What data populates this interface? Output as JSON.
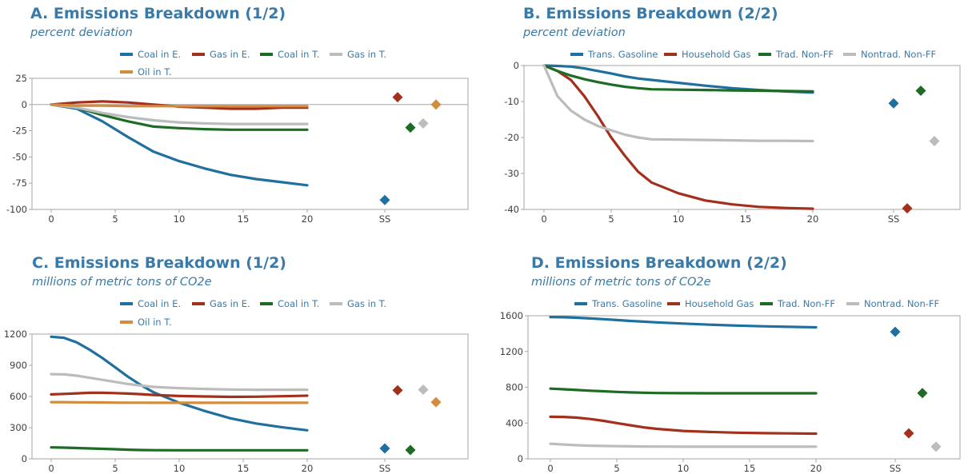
{
  "colors": {
    "blue": "#1f6f9f",
    "red": "#a3301c",
    "green": "#1e6b24",
    "gray": "#bcbcbc",
    "orange": "#d38b3e",
    "text": "#3a7aa8",
    "axis": "#a6a6a6"
  },
  "chart_data": [
    {
      "type": "line",
      "title": "A. Emissions Breakdown (1/2)",
      "subtitle": "percent deviation",
      "xlabel": "",
      "ylabel": "",
      "xlim": [
        0,
        20
      ],
      "ylim": [
        -100,
        25
      ],
      "xticks": [
        "0",
        "5",
        "10",
        "15",
        "20"
      ],
      "yticks": [
        "25",
        "0",
        "-25",
        "-50",
        "-75",
        "-100"
      ],
      "ss_label": "SS",
      "grid": false,
      "legend": "top",
      "x": [
        0,
        2,
        4,
        6,
        8,
        10,
        12,
        14,
        16,
        18,
        20
      ],
      "series": [
        {
          "name": "Coal in E.",
          "color": "blue",
          "values": [
            0,
            -4,
            -16,
            -31,
            -45,
            -54,
            -61,
            -67,
            -71,
            -74,
            -77
          ],
          "ss": -91
        },
        {
          "name": "Gas in E.",
          "color": "red",
          "values": [
            0,
            2,
            3,
            2,
            0,
            -2,
            -3,
            -4,
            -4,
            -3,
            -3
          ],
          "ss": 7
        },
        {
          "name": "Coal in T.",
          "color": "green",
          "values": [
            0,
            -3,
            -10,
            -16,
            -21,
            -22.5,
            -23.5,
            -24,
            -24,
            -24,
            -24
          ],
          "ss": -22
        },
        {
          "name": "Gas in T.",
          "color": "gray",
          "values": [
            0,
            -3,
            -8,
            -12,
            -15,
            -17,
            -18,
            -18.5,
            -18.5,
            -18.5,
            -18.5
          ],
          "ss": -18
        },
        {
          "name": "Oil in T.",
          "color": "orange",
          "values": [
            0,
            -1,
            -1,
            -1.5,
            -1.5,
            -1.5,
            -1.5,
            -1.5,
            -1.5,
            -1.5,
            -1.5
          ],
          "ss": 0
        }
      ]
    },
    {
      "type": "line",
      "title": "B. Emissions Breakdown (2/2)",
      "subtitle": "percent deviation",
      "xlabel": "",
      "ylabel": "",
      "xlim": [
        0,
        20
      ],
      "ylim": [
        -40,
        0
      ],
      "xticks": [
        "0",
        "5",
        "10",
        "15",
        "20"
      ],
      "yticks": [
        "0",
        "-10",
        "-20",
        "-30",
        "-40"
      ],
      "ss_label": "SS",
      "grid": false,
      "legend": "top",
      "x": [
        0,
        1,
        2,
        3,
        4,
        5,
        6,
        7,
        8,
        10,
        12,
        14,
        16,
        18,
        20
      ],
      "series": [
        {
          "name": "Trans. Gasoline",
          "color": "blue",
          "values": [
            0,
            -0.1,
            -0.3,
            -0.8,
            -1.5,
            -2.2,
            -3,
            -3.6,
            -4,
            -4.8,
            -5.6,
            -6.3,
            -6.8,
            -7.2,
            -7.5
          ],
          "ss": -10.5
        },
        {
          "name": "Household Gas",
          "color": "red",
          "values": [
            0,
            -1.5,
            -4,
            -8.5,
            -14,
            -20,
            -25,
            -29.5,
            -32.5,
            -35.5,
            -37.5,
            -38.6,
            -39.3,
            -39.6,
            -39.8
          ],
          "ss": -39.7
        },
        {
          "name": "Trad. Non-FF",
          "color": "green",
          "values": [
            0,
            -1.5,
            -2.8,
            -3.8,
            -4.6,
            -5.3,
            -5.9,
            -6.3,
            -6.6,
            -6.7,
            -6.8,
            -6.9,
            -7,
            -7.1,
            -7.2
          ],
          "ss": -7
        },
        {
          "name": "Nontrad. Non-FF",
          "color": "gray",
          "values": [
            0,
            -8.5,
            -12.5,
            -15,
            -16.8,
            -18,
            -19.2,
            -20,
            -20.5,
            -20.6,
            -20.7,
            -20.8,
            -20.9,
            -20.9,
            -21
          ],
          "ss": -21
        }
      ]
    },
    {
      "type": "line",
      "title": "C. Emissions Breakdown (1/2)",
      "subtitle": "millions of metric tons of CO2e",
      "xlabel": "",
      "ylabel": "",
      "xlim": [
        0,
        20
      ],
      "ylim": [
        0,
        1200
      ],
      "xticks": [
        "0",
        "5",
        "10",
        "15",
        "20"
      ],
      "yticks": [
        "1200",
        "900",
        "600",
        "300",
        "0"
      ],
      "ss_label": "SS",
      "grid": false,
      "legend": "top",
      "x": [
        0,
        1,
        2,
        3,
        4,
        5,
        6,
        7,
        8,
        10,
        12,
        14,
        16,
        18,
        20
      ],
      "series": [
        {
          "name": "Coal in E.",
          "color": "blue",
          "values": [
            1175,
            1165,
            1120,
            1050,
            970,
            880,
            790,
            710,
            640,
            540,
            460,
            390,
            340,
            305,
            275
          ],
          "ss": 100
        },
        {
          "name": "Gas in E.",
          "color": "red",
          "values": [
            620,
            625,
            630,
            635,
            635,
            632,
            628,
            622,
            615,
            605,
            600,
            596,
            598,
            602,
            608
          ],
          "ss": 660
        },
        {
          "name": "Coal in T.",
          "color": "green",
          "values": [
            110,
            108,
            104,
            100,
            96,
            92,
            88,
            85,
            83,
            82,
            82,
            82,
            82,
            82,
            82
          ],
          "ss": 85
        },
        {
          "name": "Gas in T.",
          "color": "gray",
          "values": [
            815,
            812,
            800,
            780,
            760,
            740,
            720,
            705,
            692,
            680,
            672,
            667,
            665,
            665,
            665
          ],
          "ss": 665
        },
        {
          "name": "Oil in T.",
          "color": "orange",
          "values": [
            545,
            545,
            544,
            543,
            542,
            541,
            540,
            540,
            539,
            539,
            539,
            539,
            539,
            539,
            539
          ],
          "ss": 545
        }
      ]
    },
    {
      "type": "line",
      "title": "D. Emissions Breakdown (2/2)",
      "subtitle": "millions of metric tons of CO2e",
      "xlabel": "",
      "ylabel": "",
      "xlim": [
        0,
        20
      ],
      "ylim": [
        0,
        1600
      ],
      "xticks": [
        "0",
        "5",
        "10",
        "15",
        "20"
      ],
      "yticks": [
        "1600",
        "1200",
        "800",
        "400",
        "0"
      ],
      "ss_label": "SS",
      "grid": false,
      "legend": "top",
      "x": [
        0,
        1,
        2,
        3,
        4,
        5,
        6,
        7,
        8,
        10,
        12,
        14,
        16,
        18,
        20
      ],
      "series": [
        {
          "name": "Trans. Gasoline",
          "color": "blue",
          "values": [
            1585,
            1583,
            1578,
            1570,
            1562,
            1552,
            1542,
            1534,
            1526,
            1512,
            1500,
            1490,
            1482,
            1476,
            1470
          ],
          "ss": 1420
        },
        {
          "name": "Household Gas",
          "color": "red",
          "values": [
            470,
            468,
            460,
            445,
            425,
            400,
            375,
            352,
            335,
            312,
            300,
            292,
            287,
            284,
            282
          ],
          "ss": 285
        },
        {
          "name": "Trad. Non-FF",
          "color": "green",
          "values": [
            785,
            778,
            770,
            762,
            755,
            748,
            743,
            739,
            736,
            734,
            733,
            733,
            733,
            733,
            733
          ],
          "ss": 735
        },
        {
          "name": "Nontrad. Non-FF",
          "color": "gray",
          "values": [
            168,
            160,
            152,
            147,
            144,
            141,
            139,
            138,
            137,
            136,
            136,
            136,
            136,
            136,
            136
          ],
          "ss": 135
        }
      ]
    }
  ]
}
